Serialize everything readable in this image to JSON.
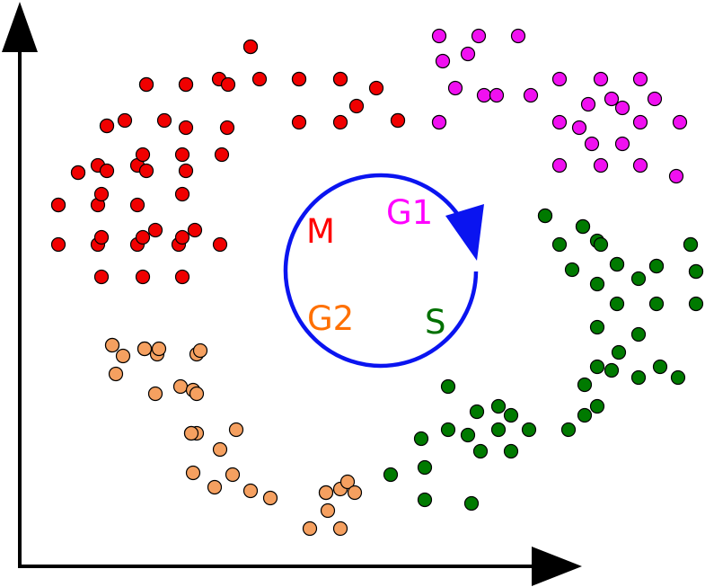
{
  "diagram": {
    "phase_labels": {
      "m": "M",
      "g1": "G1",
      "s": "S",
      "g2": "G2"
    },
    "colors": {
      "axes": "#000000",
      "cycle_arrow": "#0a14f0",
      "m": "#ff0000",
      "g1": "#ff00ff",
      "s": "#007000",
      "g2": "#ff7000",
      "m_points": "#f00000",
      "g1_points": "#f010f0",
      "s_points": "#007a00",
      "g2_points": "#f5a060"
    },
    "cycle_direction": "clockwise",
    "cluster_sizes": {
      "m": 54,
      "g1": 28,
      "s": 48,
      "g2": 32
    }
  }
}
